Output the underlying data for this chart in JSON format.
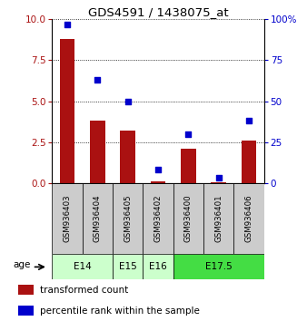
{
  "title": "GDS4591 / 1438075_at",
  "categories": [
    "GSM936403",
    "GSM936404",
    "GSM936405",
    "GSM936402",
    "GSM936400",
    "GSM936401",
    "GSM936406"
  ],
  "red_values": [
    8.8,
    3.8,
    3.2,
    0.12,
    2.1,
    0.05,
    2.6
  ],
  "blue_values": [
    97,
    63,
    50,
    8,
    30,
    3,
    38
  ],
  "ylim_left": [
    0,
    10
  ],
  "ylim_right": [
    0,
    100
  ],
  "yticks_left": [
    0,
    2.5,
    5,
    7.5,
    10
  ],
  "yticks_right": [
    0,
    25,
    50,
    75,
    100
  ],
  "age_groups": [
    {
      "label": "E14",
      "start": 0,
      "end": 2,
      "color": "#ccffcc"
    },
    {
      "label": "E15",
      "start": 2,
      "end": 3,
      "color": "#ccffcc"
    },
    {
      "label": "E16",
      "start": 3,
      "end": 4,
      "color": "#ccffcc"
    },
    {
      "label": "E17.5",
      "start": 4,
      "end": 7,
      "color": "#44dd44"
    }
  ],
  "bar_color": "#aa1111",
  "dot_color": "#0000cc",
  "label_bg_color": "#cccccc",
  "age_label": "age",
  "legend_red": "transformed count",
  "legend_blue": "percentile rank within the sample"
}
